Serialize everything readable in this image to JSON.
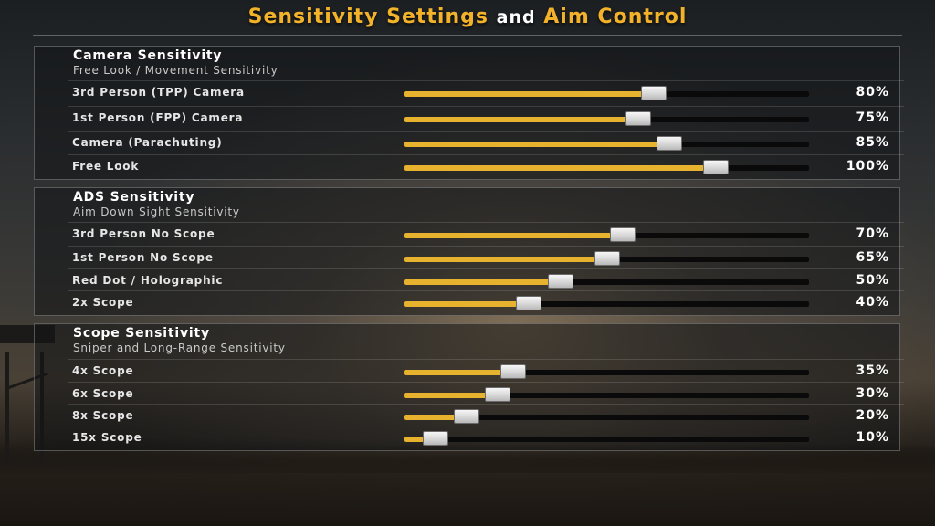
{
  "title": {
    "part1": "Sensitivity Settings",
    "part2": "and",
    "part3": "Aim Control"
  },
  "colors": {
    "accent": "#f2b22a",
    "slider_fill": "#e7b22e",
    "track": "#0a0a0a"
  },
  "sections": [
    {
      "title": "Camera Sensitivity",
      "subtitle": "Free Look / Movement Sensitivity",
      "rows": [
        {
          "label": "3rd Person (TPP) Camera",
          "value": 80,
          "display": "80%"
        },
        {
          "label": "1st Person (FPP) Camera",
          "value": 75,
          "display": "75%"
        },
        {
          "label": "Camera (Parachuting)",
          "value": 85,
          "display": "85%"
        },
        {
          "label": "Free Look",
          "value": 100,
          "display": "100%"
        }
      ]
    },
    {
      "title": "ADS Sensitivity",
      "subtitle": "Aim Down Sight Sensitivity",
      "rows": [
        {
          "label": "3rd Person No Scope",
          "value": 70,
          "display": "70%"
        },
        {
          "label": "1st Person No Scope",
          "value": 65,
          "display": "65%"
        },
        {
          "label": "Red Dot / Holographic",
          "value": 50,
          "display": "50%"
        },
        {
          "label": "2x Scope",
          "value": 40,
          "display": "40%"
        }
      ]
    },
    {
      "title": "Scope Sensitivity",
      "subtitle": "Sniper and Long-Range Sensitivity",
      "rows": [
        {
          "label": "4x Scope",
          "value": 35,
          "display": "35%"
        },
        {
          "label": "6x Scope",
          "value": 30,
          "display": "30%"
        },
        {
          "label": "8x Scope",
          "value": 20,
          "display": "20%"
        },
        {
          "label": "15x Scope",
          "value": 10,
          "display": "10%"
        }
      ]
    }
  ]
}
